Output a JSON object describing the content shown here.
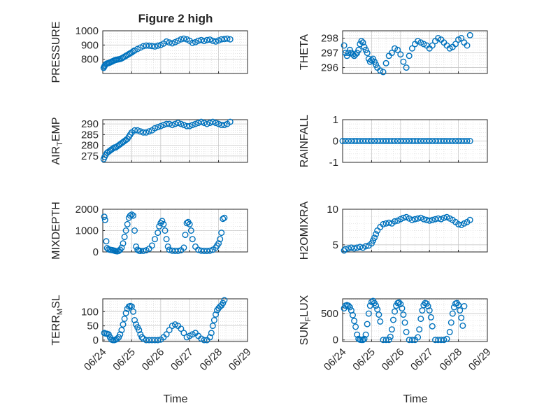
{
  "figure": {
    "title": "Figure 2 high",
    "marker_color": "#0072BD",
    "grid": "major and minor, dotted",
    "xlabel": "Time",
    "xticks": [
      "06/24",
      "06/25",
      "06/26",
      "06/27",
      "06/28",
      "06/29"
    ]
  },
  "chart_data": [
    {
      "type": "scatter",
      "id": "pressure",
      "ylabel_text": "PRESSURE",
      "ylim": [
        700,
        1000
      ],
      "yticks": [
        800,
        900,
        1000
      ],
      "x": [
        0.03,
        0.05,
        0.07,
        0.1,
        0.14,
        0.18,
        0.22,
        0.26,
        0.3,
        0.34,
        0.38,
        0.42,
        0.46,
        0.5,
        0.55,
        0.6,
        0.65,
        0.7,
        0.75,
        0.8,
        0.85,
        0.9,
        0.95,
        1.0,
        1.05,
        1.1,
        1.2,
        1.3,
        1.4,
        1.5,
        1.6,
        1.7,
        1.8,
        1.9,
        2.0,
        2.1,
        2.2,
        2.3,
        2.4,
        2.5,
        2.6,
        2.7,
        2.8,
        2.9,
        3.0,
        3.1,
        3.2,
        3.3,
        3.4,
        3.5,
        3.6,
        3.7,
        3.8,
        3.9,
        4.0,
        4.1,
        4.2,
        4.3,
        4.4
      ],
      "y": [
        740,
        748,
        756,
        764,
        770,
        772,
        775,
        778,
        782,
        786,
        790,
        794,
        796,
        798,
        800,
        802,
        806,
        812,
        818,
        824,
        830,
        836,
        842,
        848,
        856,
        862,
        872,
        882,
        892,
        896,
        895,
        893,
        890,
        895,
        900,
        910,
        925,
        918,
        912,
        920,
        930,
        940,
        945,
        940,
        930,
        915,
        920,
        930,
        935,
        928,
        935,
        938,
        930,
        925,
        932,
        940,
        942,
        945,
        940
      ]
    },
    {
      "type": "scatter",
      "id": "theta",
      "ylabel_text": "THETA",
      "ylim": [
        295.6,
        298.5
      ],
      "yticks": [
        296,
        297,
        298
      ],
      "x": [
        0.05,
        0.1,
        0.15,
        0.2,
        0.25,
        0.3,
        0.35,
        0.4,
        0.45,
        0.5,
        0.55,
        0.6,
        0.65,
        0.7,
        0.75,
        0.8,
        0.85,
        0.9,
        0.95,
        1.0,
        1.05,
        1.1,
        1.15,
        1.2,
        1.3,
        1.4,
        1.5,
        1.6,
        1.7,
        1.8,
        1.9,
        2.0,
        2.1,
        2.2,
        2.3,
        2.4,
        2.5,
        2.6,
        2.7,
        2.8,
        2.9,
        3.0,
        3.1,
        3.2,
        3.3,
        3.4,
        3.5,
        3.6,
        3.7,
        3.8,
        3.9,
        4.0,
        4.1,
        4.2,
        4.3,
        4.4
      ],
      "y": [
        297.5,
        297.0,
        296.8,
        297.0,
        297.2,
        297.0,
        296.9,
        296.8,
        296.9,
        297.0,
        297.2,
        297.6,
        297.8,
        297.7,
        297.4,
        297.2,
        297.0,
        296.6,
        296.4,
        296.5,
        296.6,
        296.4,
        296.2,
        296.0,
        295.8,
        295.7,
        296.3,
        296.8,
        297.0,
        297.3,
        297.2,
        296.9,
        296.4,
        296.0,
        296.8,
        297.3,
        297.6,
        297.8,
        297.7,
        297.6,
        297.5,
        297.3,
        297.5,
        297.8,
        298.0,
        297.9,
        297.7,
        297.5,
        297.3,
        297.4,
        297.6,
        297.9,
        298.0,
        297.7,
        297.5,
        298.2
      ]
    },
    {
      "type": "scatter",
      "id": "air_temp",
      "ylabel_text": "AIR",
      "ylabel_sub": "T",
      "ylabel_tail": "EMP",
      "ylim": [
        272,
        292
      ],
      "yticks": [
        275,
        280,
        285,
        290
      ],
      "x": [
        0.03,
        0.06,
        0.1,
        0.15,
        0.2,
        0.25,
        0.3,
        0.35,
        0.4,
        0.45,
        0.5,
        0.55,
        0.6,
        0.65,
        0.7,
        0.75,
        0.8,
        0.85,
        0.9,
        0.95,
        1.0,
        1.1,
        1.2,
        1.3,
        1.4,
        1.5,
        1.6,
        1.7,
        1.8,
        1.9,
        2.0,
        2.1,
        2.2,
        2.3,
        2.4,
        2.5,
        2.6,
        2.7,
        2.8,
        2.9,
        3.0,
        3.1,
        3.2,
        3.3,
        3.4,
        3.5,
        3.6,
        3.7,
        3.8,
        3.9,
        4.0,
        4.1,
        4.2,
        4.3,
        4.4
      ],
      "y": [
        273.5,
        274.5,
        275.5,
        276.5,
        277.0,
        277.5,
        278.0,
        278.5,
        279.0,
        279.0,
        279.5,
        280.0,
        280.5,
        281.0,
        281.5,
        282.0,
        282.5,
        283.0,
        284.0,
        285.0,
        286.0,
        287.0,
        287.0,
        286.5,
        286.0,
        286.0,
        286.5,
        287.0,
        288.0,
        288.5,
        289.0,
        289.5,
        290.0,
        290.0,
        289.5,
        290.0,
        290.5,
        290.0,
        289.5,
        289.0,
        289.0,
        289.5,
        290.0,
        290.5,
        291.0,
        290.5,
        290.0,
        290.5,
        291.0,
        290.5,
        290.0,
        289.5,
        289.5,
        290.0,
        291.0
      ]
    },
    {
      "type": "scatter",
      "id": "rainfall",
      "ylabel_text": "RAINFALL",
      "ylim": [
        -1,
        1
      ],
      "yticks": [
        -1,
        0,
        1
      ],
      "x": [
        0.0,
        0.1,
        0.2,
        0.3,
        0.4,
        0.5,
        0.6,
        0.7,
        0.8,
        0.9,
        1.0,
        1.1,
        1.2,
        1.3,
        1.4,
        1.5,
        1.6,
        1.7,
        1.8,
        1.9,
        2.0,
        2.1,
        2.2,
        2.3,
        2.4,
        2.5,
        2.6,
        2.7,
        2.8,
        2.9,
        3.0,
        3.1,
        3.2,
        3.3,
        3.4,
        3.5,
        3.6,
        3.7,
        3.8,
        3.9,
        4.0,
        4.1,
        4.2,
        4.3,
        4.4
      ],
      "y": [
        0,
        0,
        0,
        0,
        0,
        0,
        0,
        0,
        0,
        0,
        0,
        0,
        0,
        0,
        0,
        0,
        0,
        0,
        0,
        0,
        0,
        0,
        0,
        0,
        0,
        0,
        0,
        0,
        0,
        0,
        0,
        0,
        0,
        0,
        0,
        0,
        0,
        0,
        0,
        0,
        0,
        0,
        0,
        0,
        0
      ]
    },
    {
      "type": "scatter",
      "id": "mixdepth",
      "ylabel_text": "MIXDEPTH",
      "ylim": [
        0,
        2000
      ],
      "yticks": [
        0,
        1000,
        2000
      ],
      "x": [
        0.05,
        0.08,
        0.12,
        0.15,
        0.2,
        0.25,
        0.3,
        0.35,
        0.4,
        0.45,
        0.5,
        0.55,
        0.6,
        0.65,
        0.7,
        0.75,
        0.8,
        0.85,
        0.9,
        0.95,
        1.0,
        1.05,
        1.1,
        1.15,
        1.2,
        1.25,
        1.3,
        1.4,
        1.5,
        1.6,
        1.7,
        1.8,
        1.9,
        1.95,
        2.0,
        2.05,
        2.1,
        2.15,
        2.2,
        2.25,
        2.3,
        2.4,
        2.5,
        2.6,
        2.7,
        2.8,
        2.85,
        2.9,
        2.95,
        3.0,
        3.05,
        3.1,
        3.2,
        3.3,
        3.4,
        3.5,
        3.6,
        3.7,
        3.8,
        3.9,
        3.95,
        4.0,
        4.05,
        4.1,
        4.15,
        4.2
      ],
      "y": [
        1650,
        1500,
        500,
        180,
        120,
        100,
        90,
        80,
        60,
        40,
        30,
        50,
        100,
        200,
        400,
        700,
        1000,
        1300,
        1600,
        1700,
        1750,
        1700,
        1000,
        250,
        100,
        60,
        50,
        50,
        80,
        150,
        300,
        600,
        900,
        1200,
        1350,
        1450,
        1300,
        1000,
        600,
        250,
        100,
        60,
        50,
        50,
        80,
        200,
        800,
        1350,
        1400,
        1300,
        1000,
        600,
        250,
        100,
        60,
        50,
        50,
        60,
        100,
        200,
        300,
        400,
        600,
        900,
        1550,
        1600
      ]
    },
    {
      "type": "scatter",
      "id": "h2omixra",
      "ylabel_text": "H2OMIXRA",
      "ylim": [
        4,
        10
      ],
      "yticks": [
        5,
        10
      ],
      "x": [
        0.05,
        0.1,
        0.2,
        0.3,
        0.4,
        0.5,
        0.6,
        0.7,
        0.8,
        0.9,
        1.0,
        1.05,
        1.1,
        1.15,
        1.2,
        1.3,
        1.4,
        1.5,
        1.6,
        1.7,
        1.8,
        1.9,
        2.0,
        2.1,
        2.2,
        2.3,
        2.4,
        2.5,
        2.6,
        2.7,
        2.8,
        2.9,
        3.0,
        3.1,
        3.2,
        3.3,
        3.4,
        3.5,
        3.6,
        3.7,
        3.8,
        3.9,
        4.0,
        4.1,
        4.2,
        4.3,
        4.4
      ],
      "y": [
        4.2,
        4.4,
        4.5,
        4.6,
        4.5,
        4.6,
        4.7,
        4.6,
        4.8,
        4.9,
        5.2,
        5.6,
        6.0,
        6.5,
        7.0,
        7.5,
        7.9,
        8.0,
        8.1,
        8.0,
        8.3,
        8.4,
        8.6,
        8.8,
        8.9,
        8.7,
        8.5,
        8.6,
        8.7,
        8.8,
        8.6,
        8.5,
        8.4,
        8.5,
        8.6,
        8.7,
        8.6,
        8.8,
        8.9,
        8.7,
        8.5,
        8.2,
        7.9,
        7.8,
        8.0,
        8.2,
        8.5
      ]
    },
    {
      "type": "scatter",
      "id": "terr_msl",
      "ylabel_text": "TERR",
      "ylabel_sub": "M",
      "ylabel_tail": "SL",
      "ylim": [
        -5,
        145
      ],
      "yticks": [
        0,
        50,
        100
      ],
      "x": [
        0.05,
        0.1,
        0.15,
        0.2,
        0.25,
        0.3,
        0.35,
        0.4,
        0.45,
        0.5,
        0.55,
        0.6,
        0.65,
        0.7,
        0.75,
        0.8,
        0.85,
        0.9,
        0.95,
        1.0,
        1.05,
        1.1,
        1.15,
        1.2,
        1.25,
        1.3,
        1.35,
        1.4,
        1.5,
        1.6,
        1.7,
        1.8,
        1.9,
        2.0,
        2.1,
        2.2,
        2.3,
        2.4,
        2.5,
        2.6,
        2.7,
        2.8,
        2.9,
        3.0,
        3.1,
        3.2,
        3.3,
        3.4,
        3.5,
        3.6,
        3.7,
        3.75,
        3.8,
        3.85,
        3.9,
        3.95,
        4.0,
        4.05,
        4.1,
        4.15,
        4.2
      ],
      "y": [
        25,
        23,
        22,
        20,
        10,
        2,
        0,
        0,
        2,
        5,
        10,
        20,
        35,
        55,
        75,
        95,
        110,
        118,
        120,
        118,
        100,
        70,
        55,
        45,
        35,
        20,
        10,
        5,
        0,
        0,
        0,
        0,
        0,
        2,
        10,
        20,
        35,
        50,
        55,
        50,
        40,
        25,
        10,
        15,
        20,
        25,
        15,
        5,
        0,
        0,
        10,
        25,
        50,
        70,
        90,
        105,
        112,
        118,
        122,
        130,
        140
      ]
    },
    {
      "type": "scatter",
      "id": "sun_flux",
      "ylabel_text": "SUN",
      "ylabel_sub": "F",
      "ylabel_tail": "LUX",
      "ylim": [
        -30,
        780
      ],
      "yticks": [
        0,
        500
      ],
      "x": [
        0.05,
        0.1,
        0.15,
        0.2,
        0.25,
        0.3,
        0.35,
        0.4,
        0.45,
        0.5,
        0.55,
        0.6,
        0.65,
        0.7,
        0.75,
        0.8,
        0.85,
        0.9,
        0.95,
        1.0,
        1.05,
        1.1,
        1.15,
        1.2,
        1.25,
        1.3,
        1.4,
        1.5,
        1.6,
        1.65,
        1.7,
        1.75,
        1.8,
        1.85,
        1.9,
        1.95,
        2.0,
        2.05,
        2.1,
        2.15,
        2.2,
        2.3,
        2.4,
        2.5,
        2.6,
        2.65,
        2.7,
        2.75,
        2.8,
        2.85,
        2.9,
        2.95,
        3.0,
        3.05,
        3.1,
        3.2,
        3.3,
        3.4,
        3.5,
        3.6,
        3.7,
        3.75,
        3.8,
        3.85,
        3.9,
        3.95,
        4.0,
        4.05,
        4.1,
        4.15,
        4.2
      ],
      "y": [
        600,
        650,
        660,
        650,
        620,
        560,
        470,
        360,
        250,
        100,
        20,
        5,
        0,
        0,
        20,
        100,
        300,
        500,
        650,
        720,
        740,
        700,
        650,
        580,
        480,
        350,
        0,
        0,
        0,
        60,
        200,
        380,
        540,
        650,
        700,
        710,
        680,
        600,
        480,
        330,
        150,
        0,
        0,
        0,
        50,
        200,
        400,
        560,
        660,
        700,
        690,
        640,
        560,
        430,
        260,
        0,
        0,
        0,
        0,
        20,
        150,
        330,
        500,
        620,
        690,
        700,
        660,
        560,
        420,
        270,
        640
      ]
    }
  ]
}
